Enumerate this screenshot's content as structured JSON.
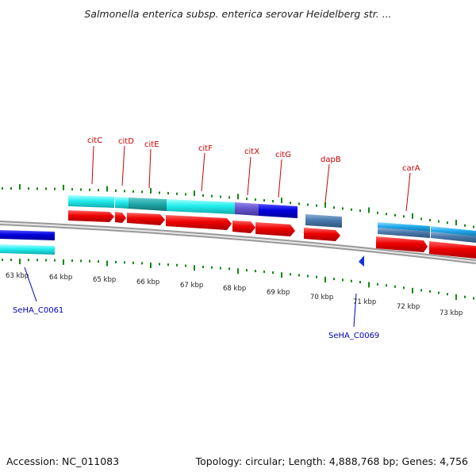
{
  "title": "Salmonella enterica subsp. enterica serovar Heidelberg str. ...",
  "footer": {
    "accession": "Accession: NC_011083",
    "topology": "Topology: circular; Length: 4,888,768 bp; Genes: 4,756"
  },
  "colors": {
    "gene_label_red": "#cc0000",
    "gene_label_blue": "#0000bb",
    "cyan_gene": "#22eeee",
    "blue_gene": "#0000dd",
    "red_gene": "#ee0000",
    "steel_gene": "#4a79aa",
    "tick_green": "#118811",
    "backbone": "#888888"
  },
  "scale": {
    "ticks": [
      "63 kbp",
      "64 kbp",
      "65 kbp",
      "66 kbp",
      "67 kbp",
      "68 kbp",
      "69 kbp",
      "70 kbp",
      "71 kbp",
      "72 kbp",
      "73 kbp"
    ]
  },
  "genes": {
    "top_labels": [
      "citC",
      "citD",
      "citE",
      "citF",
      "citX",
      "citG",
      "dapB",
      "carA"
    ],
    "bottom_labels": [
      "SeHA_C0061",
      "SeHA_C0069"
    ]
  }
}
